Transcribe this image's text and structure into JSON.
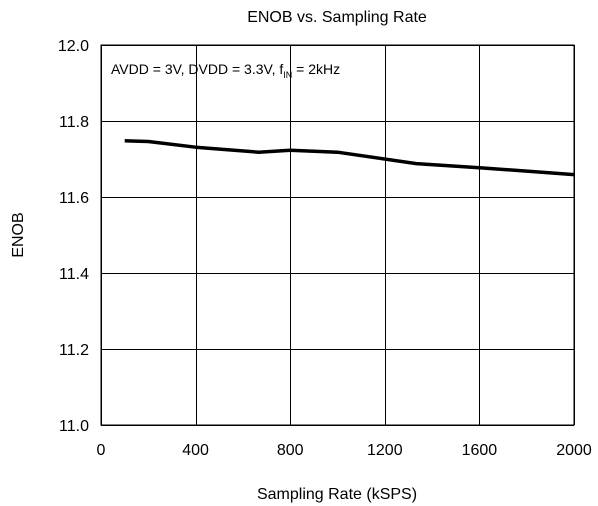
{
  "chart_data": {
    "type": "line",
    "title": "ENOB vs. Sampling Rate",
    "xlabel": "Sampling Rate (kSPS)",
    "ylabel": "ENOB",
    "xlim": [
      0,
      2000
    ],
    "ylim": [
      11.0,
      12.0
    ],
    "xticks": [
      0,
      400,
      800,
      1200,
      1600,
      2000
    ],
    "yticks": [
      11.0,
      11.2,
      11.4,
      11.6,
      11.8,
      12.0
    ],
    "xtick_labels": [
      "0",
      "400",
      "800",
      "1200",
      "1600",
      "2000"
    ],
    "ytick_labels": [
      "11.0",
      "11.2",
      "11.4",
      "11.6",
      "11.8",
      "12.0"
    ],
    "grid": true,
    "annotation": {
      "prefix": "AVDD = 3V, DVDD = 3.3V, f",
      "subscript": "IN",
      "suffix": " = 2kHz"
    },
    "series": [
      {
        "color": "#000000",
        "x": [
          100,
          200,
          400,
          667,
          800,
          1000,
          1333,
          1600,
          2000
        ],
        "y": [
          11.748,
          11.746,
          11.731,
          11.718,
          11.723,
          11.718,
          11.688,
          11.677,
          11.659
        ]
      }
    ]
  }
}
